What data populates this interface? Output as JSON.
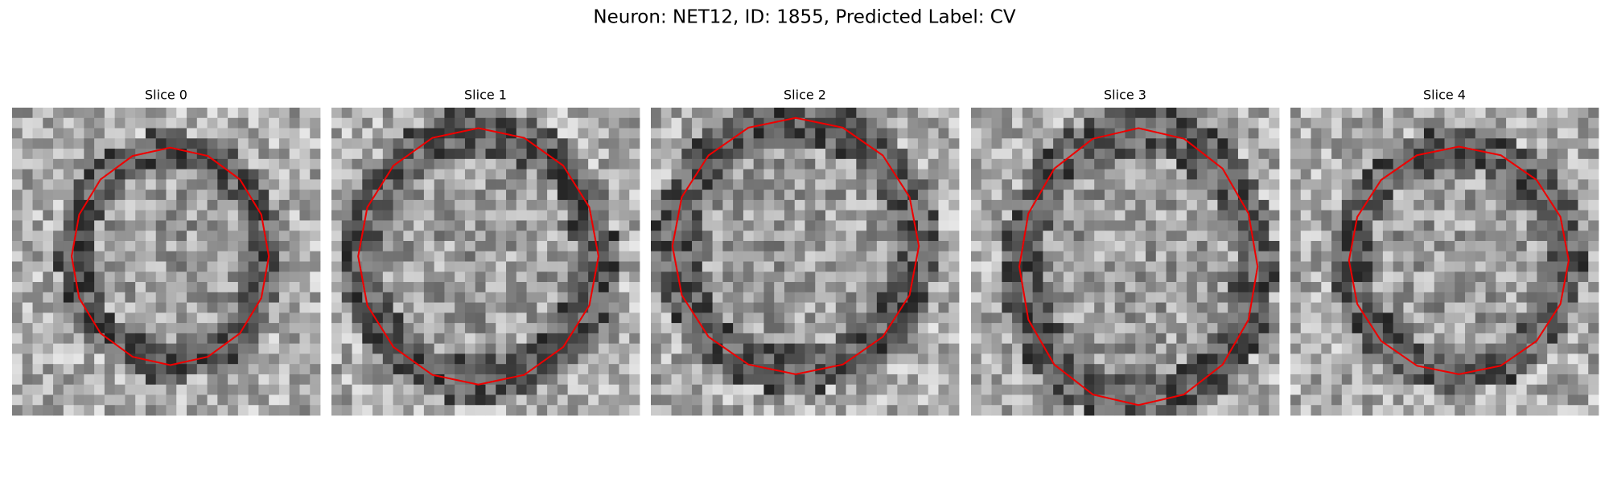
{
  "header": {
    "title": "Neuron: NET12, ID: 1855, Predicted Label: CV"
  },
  "panels": [
    {
      "title": "Slice 0"
    },
    {
      "title": "Slice 1"
    },
    {
      "title": "Slice 2"
    },
    {
      "title": "Slice 3"
    },
    {
      "title": "Slice 4"
    }
  ]
}
